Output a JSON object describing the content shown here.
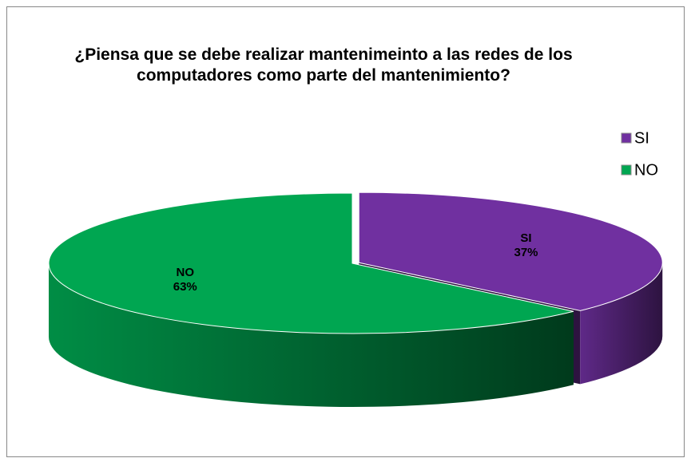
{
  "chart_data": {
    "type": "pie",
    "title": "¿Piensa que se debe realizar mantenimeinto a las redes de los computadores como parte del mantenimiento?",
    "categories": [
      "SI",
      "NO"
    ],
    "values": [
      37,
      63
    ],
    "value_labels": [
      "37%",
      "63%"
    ],
    "colors": [
      "#7030a0",
      "#00a651"
    ],
    "legend": "right"
  }
}
